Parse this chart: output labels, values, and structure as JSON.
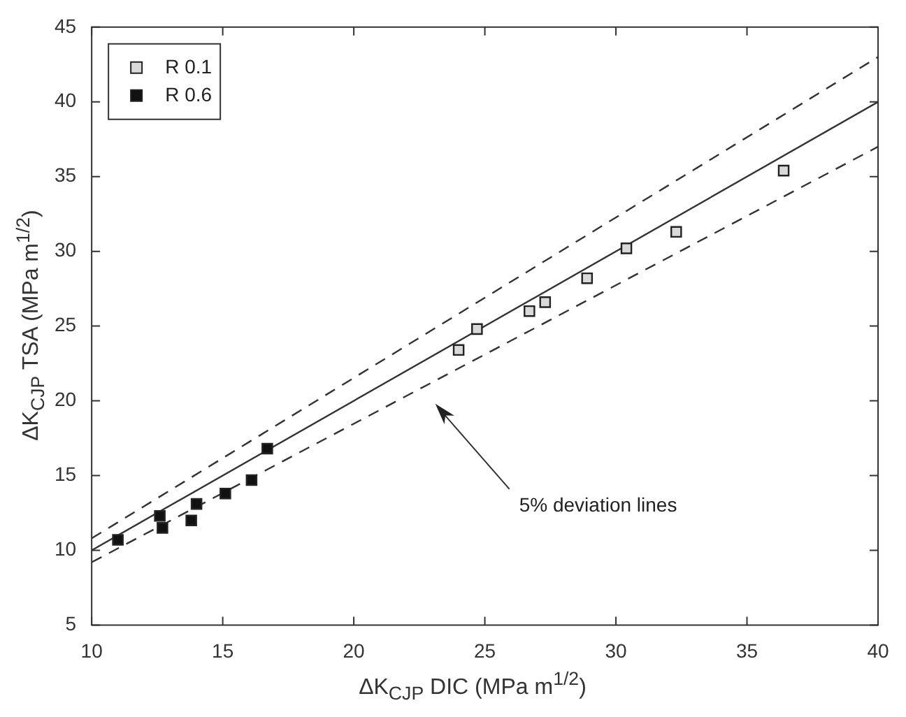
{
  "chart_data": {
    "type": "scatter",
    "xlabel": "ΔK$_{CJP}$ DIC (MPa m$^{1/2}$)",
    "ylabel": "ΔK$_{CJP}$ TSA (MPa m$^{1/2}$)",
    "xlim": [
      10,
      40
    ],
    "ylim": [
      5,
      45
    ],
    "xticks": [
      10,
      15,
      20,
      25,
      30,
      35,
      40
    ],
    "yticks": [
      5,
      10,
      15,
      20,
      25,
      30,
      35,
      40,
      45
    ],
    "grid": false,
    "legend": "top left",
    "marker": "square",
    "annotations": [
      "5% deviation lines"
    ],
    "series": [
      {
        "name": "R 0.1",
        "color": "#d9d9d9",
        "x": [
          24.0,
          24.7,
          26.7,
          27.3,
          28.9,
          30.4,
          32.3,
          36.4
        ],
        "values": [
          23.4,
          24.8,
          26.0,
          26.6,
          28.2,
          30.2,
          31.3,
          35.4
        ]
      },
      {
        "name": "R 0.6",
        "color": "#111111",
        "x": [
          11.0,
          12.6,
          12.7,
          13.8,
          14.0,
          15.1,
          16.1,
          16.7
        ],
        "values": [
          10.7,
          12.3,
          11.5,
          12.0,
          13.1,
          13.8,
          14.7,
          16.8
        ]
      },
      {
        "type": "line",
        "color": "#333333",
        "line_style": "solid",
        "marker": "none",
        "x": [
          10,
          40
        ],
        "values": [
          10,
          40
        ]
      },
      {
        "type": "line",
        "color": "#333333",
        "line_style": "dashed",
        "marker": "none",
        "x": [
          10,
          40
        ],
        "values": [
          10.8,
          43
        ]
      },
      {
        "type": "line",
        "color": "#333333",
        "line_style": "dashed",
        "marker": "none",
        "x": [
          10,
          40
        ],
        "values": [
          9.2,
          37
        ]
      }
    ]
  }
}
